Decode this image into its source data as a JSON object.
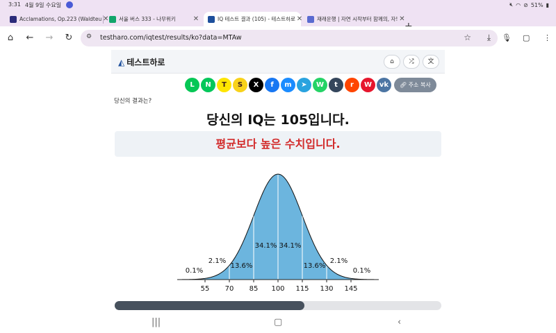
{
  "status_bar": {
    "time": "3:31",
    "date": "4월 9일 수요일",
    "battery": "51%"
  },
  "tabs": [
    {
      "title": "Acclamations, Op.223 (Waldteu",
      "favicon_color": "#2b2b7a",
      "active": false
    },
    {
      "title": "서울 버스 333 - 나무위키",
      "favicon_color": "#12a56b",
      "active": false
    },
    {
      "title": "IQ 테스트 결과 (105) - 테스트하로",
      "favicon_color": "#1d4f9c",
      "active": true
    },
    {
      "title": "재래운행 | 자연 시작부터 함께의, 자!",
      "favicon_color": "#5a6ad0",
      "active": false
    }
  ],
  "address_bar": {
    "url": "testharo.com/iqtest/results/ko?data=MTAw"
  },
  "site": {
    "name": "테스트하로",
    "brand_color": "#1d4f9c",
    "header_icons": [
      "home-icon",
      "shuffle-icon",
      "language-icon"
    ]
  },
  "share": {
    "buttons": [
      {
        "name": "line",
        "glyph": "L",
        "color": "#06c755"
      },
      {
        "name": "naver",
        "glyph": "N",
        "color": "#03c75a"
      },
      {
        "name": "kakaotalk",
        "glyph": "T",
        "color": "#fee500"
      },
      {
        "name": "kakaostory",
        "glyph": "S",
        "color": "#f8d21a"
      },
      {
        "name": "x",
        "glyph": "X",
        "color": "#000000"
      },
      {
        "name": "facebook",
        "glyph": "f",
        "color": "#1877f2"
      },
      {
        "name": "messenger",
        "glyph": "m",
        "color": "#1b8cff"
      },
      {
        "name": "telegram",
        "glyph": "➤",
        "color": "#2aa3df"
      },
      {
        "name": "whatsapp",
        "glyph": "W",
        "color": "#25d366"
      },
      {
        "name": "tumblr",
        "glyph": "t",
        "color": "#35465c"
      },
      {
        "name": "reddit",
        "glyph": "r",
        "color": "#ff4500"
      },
      {
        "name": "weibo",
        "glyph": "W",
        "color": "#e6162d"
      },
      {
        "name": "vk",
        "glyph": "vk",
        "color": "#4c75a3"
      }
    ],
    "copy_label": "주소 복사"
  },
  "result": {
    "question": "당신의 결과는?",
    "headline": "당신의 IQ는 105입니다.",
    "verdict": "평균보다 높은 수치입니다.",
    "verdict_color": "#d22a2a"
  },
  "chart_data": {
    "type": "area",
    "distribution": "normal",
    "mean": 100,
    "sd": 15,
    "x_ticks": [
      55,
      70,
      85,
      100,
      115,
      130,
      145
    ],
    "bands": [
      {
        "from": 40,
        "to": 55,
        "label": "0.1%"
      },
      {
        "from": 55,
        "to": 70,
        "label": "2.1%"
      },
      {
        "from": 70,
        "to": 85,
        "label": "13.6%"
      },
      {
        "from": 85,
        "to": 100,
        "label": "34.1%"
      },
      {
        "from": 100,
        "to": 115,
        "label": "34.1%"
      },
      {
        "from": 115,
        "to": 130,
        "label": "13.6%"
      },
      {
        "from": 130,
        "to": 145,
        "label": "2.1%"
      },
      {
        "from": 145,
        "to": 160,
        "label": "0.1%"
      }
    ],
    "xlim": [
      40,
      160
    ],
    "fill_color": "#6cb5de",
    "title": "",
    "xlabel": "",
    "ylabel": ""
  },
  "progress": {
    "fraction": 0.58
  }
}
